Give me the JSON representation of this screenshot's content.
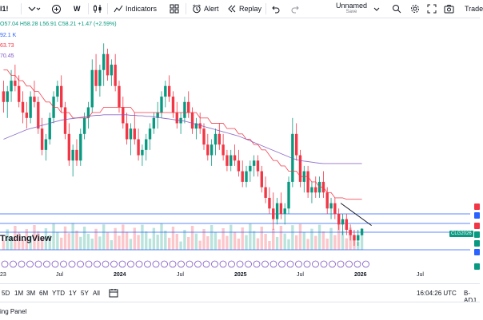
{
  "toolbar": {
    "symbol_suffix": "l1!",
    "interval": "W",
    "indicators_label": "Indicators",
    "alert_label": "Alert",
    "replay_label": "Replay",
    "layout_name": "Unnamed",
    "layout_status": "Save",
    "trade_label": "Trade"
  },
  "legend": {
    "ohlc": "O57.04 H58.28 L56.91 C58.21 +1.47 (+2.59%)",
    "vol": "92.1 K",
    "ma1": "63.73",
    "ma2": "70.45"
  },
  "colors": {
    "up": "#089981",
    "down": "#f23645",
    "ma1": "#f23645",
    "ma2": "#7e57c2",
    "line_blue": "#2962ff"
  },
  "watermark": "TradingView",
  "price_tag": "CLG2026",
  "xaxis": {
    "labels": [
      "23",
      "Jul",
      "2024",
      "Jul",
      "2025",
      "Jul",
      "2026",
      "Jul"
    ]
  },
  "ranges": [
    "5D",
    "1M",
    "3M",
    "6M",
    "YTD",
    "1Y",
    "5Y",
    "All"
  ],
  "status": {
    "time": "16:04:26 UTC",
    "adj": "B-ADJ"
  },
  "footer": {
    "panel_label": "ing Panel"
  },
  "chart_data": {
    "type": "candlestick",
    "title": "l1! W",
    "xlabel": "",
    "ylabel": "",
    "x_ticks": [
      "23",
      "Jul",
      "2024",
      "Jul",
      "2025",
      "Jul",
      "2026",
      "Jul"
    ],
    "ylim": [
      55,
      95
    ],
    "candles": [
      [
        84,
        86,
        80,
        82
      ],
      [
        82,
        85,
        79,
        84
      ],
      [
        84,
        88,
        82,
        86
      ],
      [
        86,
        89,
        84,
        85
      ],
      [
        85,
        87,
        81,
        82
      ],
      [
        82,
        84,
        78,
        80
      ],
      [
        80,
        82,
        77,
        79
      ],
      [
        79,
        84,
        78,
        83
      ],
      [
        83,
        86,
        81,
        82
      ],
      [
        82,
        83,
        76,
        77
      ],
      [
        77,
        79,
        72,
        73
      ],
      [
        73,
        76,
        71,
        75
      ],
      [
        75,
        80,
        74,
        79
      ],
      [
        79,
        84,
        78,
        83
      ],
      [
        83,
        86,
        82,
        85
      ],
      [
        85,
        87,
        80,
        81
      ],
      [
        81,
        82,
        75,
        76
      ],
      [
        76,
        78,
        70,
        71
      ],
      [
        71,
        74,
        68,
        73
      ],
      [
        73,
        75,
        70,
        71
      ],
      [
        71,
        77,
        70,
        76
      ],
      [
        76,
        80,
        75,
        79
      ],
      [
        79,
        82,
        77,
        81
      ],
      [
        81,
        90,
        80,
        88
      ],
      [
        88,
        91,
        84,
        85
      ],
      [
        85,
        89,
        83,
        88
      ],
      [
        88,
        93,
        85,
        91
      ],
      [
        91,
        92,
        86,
        87
      ],
      [
        87,
        90,
        85,
        89
      ],
      [
        89,
        91,
        84,
        85
      ],
      [
        85,
        86,
        80,
        81
      ],
      [
        81,
        83,
        77,
        78
      ],
      [
        78,
        80,
        74,
        75
      ],
      [
        75,
        78,
        72,
        77
      ],
      [
        77,
        80,
        74,
        75
      ],
      [
        75,
        77,
        71,
        72
      ],
      [
        72,
        74,
        70,
        73
      ],
      [
        73,
        76,
        71,
        75
      ],
      [
        75,
        78,
        73,
        77
      ],
      [
        77,
        80,
        76,
        79
      ],
      [
        79,
        82,
        77,
        80
      ],
      [
        80,
        84,
        79,
        83
      ],
      [
        83,
        86,
        81,
        85
      ],
      [
        85,
        87,
        82,
        83
      ],
      [
        83,
        84,
        79,
        80
      ],
      [
        80,
        82,
        77,
        78
      ],
      [
        78,
        80,
        76,
        79
      ],
      [
        79,
        83,
        78,
        82
      ],
      [
        82,
        84,
        79,
        80
      ],
      [
        80,
        81,
        76,
        77
      ],
      [
        77,
        79,
        75,
        78
      ],
      [
        78,
        80,
        76,
        77
      ],
      [
        77,
        78,
        73,
        74
      ],
      [
        74,
        76,
        71,
        72
      ],
      [
        72,
        75,
        70,
        74
      ],
      [
        74,
        77,
        72,
        76
      ],
      [
        76,
        78,
        73,
        74
      ],
      [
        74,
        76,
        71,
        72
      ],
      [
        72,
        73,
        69,
        70
      ],
      [
        70,
        73,
        69,
        72
      ],
      [
        72,
        74,
        70,
        71
      ],
      [
        71,
        73,
        68,
        69
      ],
      [
        69,
        71,
        66,
        67
      ],
      [
        67,
        70,
        66,
        69
      ],
      [
        69,
        71,
        67,
        70
      ],
      [
        70,
        72,
        68,
        71
      ],
      [
        71,
        72,
        68,
        69
      ],
      [
        69,
        70,
        65,
        66
      ],
      [
        66,
        68,
        63,
        64
      ],
      [
        64,
        66,
        61,
        62
      ],
      [
        62,
        65,
        58,
        60
      ],
      [
        60,
        64,
        59,
        63
      ],
      [
        63,
        65,
        60,
        61
      ],
      [
        61,
        63,
        59,
        62
      ],
      [
        62,
        68,
        61,
        67
      ],
      [
        67,
        79,
        66,
        76
      ],
      [
        76,
        78,
        71,
        72
      ],
      [
        72,
        73,
        66,
        67
      ],
      [
        67,
        70,
        65,
        69
      ],
      [
        69,
        70,
        64,
        65
      ],
      [
        65,
        67,
        63,
        66
      ],
      [
        66,
        68,
        64,
        65
      ],
      [
        65,
        68,
        64,
        67
      ],
      [
        67,
        69,
        64,
        65
      ],
      [
        65,
        66,
        61,
        62
      ],
      [
        62,
        64,
        60,
        63
      ],
      [
        63,
        64,
        60,
        61
      ],
      [
        61,
        62,
        58,
        59
      ],
      [
        59,
        61,
        57,
        60
      ],
      [
        60,
        61,
        57,
        58
      ],
      [
        58,
        59,
        56,
        57
      ],
      [
        57,
        58,
        55,
        56
      ],
      [
        56,
        58,
        55,
        57
      ],
      [
        57,
        58.28,
        56.91,
        58.21
      ]
    ],
    "series": [
      {
        "name": "MA 63.73",
        "color": "#f23645",
        "values": [
          88,
          88,
          87,
          87,
          86,
          86,
          85,
          85,
          84,
          84,
          83,
          82,
          82,
          81,
          81,
          80,
          80,
          80,
          79,
          79,
          79,
          79,
          79,
          80,
          80,
          80,
          81,
          81,
          81,
          81,
          81,
          81,
          81,
          81,
          80,
          80,
          80,
          80,
          80,
          80,
          80,
          80,
          80,
          80,
          80,
          80,
          80,
          80,
          80,
          80,
          80,
          79,
          79,
          79,
          78,
          78,
          78,
          78,
          77,
          77,
          77,
          76,
          76,
          75,
          75,
          74,
          74,
          73,
          73,
          72,
          71,
          71,
          70,
          70,
          69,
          69,
          69,
          68,
          68,
          68,
          67,
          67,
          66,
          66,
          65,
          65,
          64,
          64,
          64,
          63.73,
          63.73,
          63.73,
          63.73,
          63.73
        ]
      },
      {
        "name": "MA 70.45",
        "color": "#7e57c2",
        "values": [
          75,
          75.3,
          75.6,
          75.9,
          76.2,
          76.5,
          76.8,
          77,
          77.2,
          77.4,
          77.6,
          77.8,
          78,
          78.2,
          78.4,
          78.6,
          78.7,
          78.8,
          78.9,
          79,
          79.1,
          79.2,
          79.3,
          79.4,
          79.5,
          79.5,
          79.6,
          79.6,
          79.6,
          79.6,
          79.6,
          79.6,
          79.6,
          79.5,
          79.5,
          79.4,
          79.4,
          79.3,
          79.3,
          79.2,
          79.1,
          79,
          78.9,
          78.8,
          78.7,
          78.6,
          78.5,
          78.4,
          78.2,
          78,
          77.8,
          77.6,
          77.4,
          77.2,
          77,
          76.8,
          76.6,
          76.4,
          76.2,
          76,
          75.8,
          75.6,
          75.3,
          75,
          74.7,
          74.4,
          74.1,
          73.8,
          73.5,
          73.2,
          72.9,
          72.6,
          72.3,
          72,
          71.7,
          71.4,
          71.2,
          71,
          70.9,
          70.8,
          70.7,
          70.6,
          70.5,
          70.45,
          70.45,
          70.45,
          70.45,
          70.45,
          70.45,
          70.45,
          70.45,
          70.45,
          70.45,
          70.45
        ]
      }
    ]
  }
}
